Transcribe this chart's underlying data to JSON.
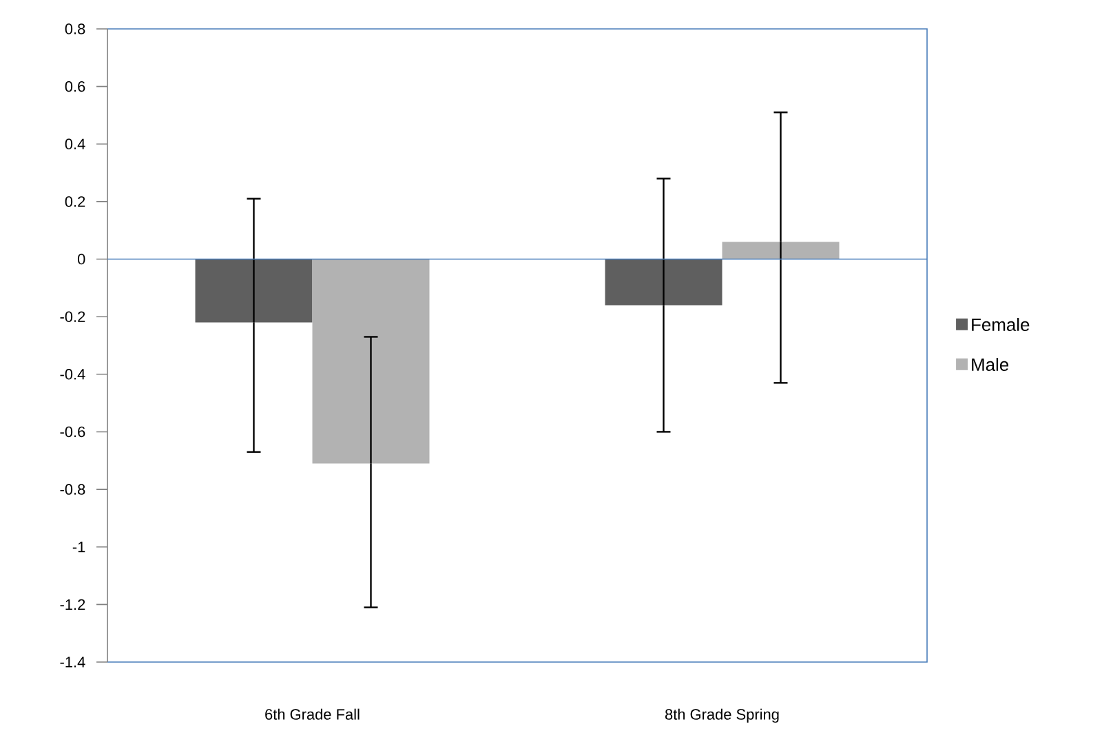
{
  "chart_data": {
    "type": "bar",
    "categories": [
      "6th Grade Fall",
      "8th Grade Spring"
    ],
    "series": [
      {
        "name": "Female",
        "color": "#5f5f5f",
        "values": [
          -0.22,
          -0.16
        ],
        "errors": [
          [
            -0.67,
            0.21
          ],
          [
            -0.6,
            0.28
          ]
        ]
      },
      {
        "name": "Male",
        "color": "#b2b2b2",
        "values": [
          -0.71,
          0.06
        ],
        "errors": [
          [
            -1.21,
            -0.27
          ],
          [
            -0.43,
            0.51
          ]
        ]
      }
    ],
    "ylim": [
      -1.4,
      0.8
    ],
    "yticks": [
      -1.4,
      -1.2,
      -1,
      -0.8,
      -0.6,
      -0.4,
      -0.2,
      0,
      0.2,
      0.4,
      0.6,
      0.8
    ],
    "legend": "right",
    "ref_lines": [
      {
        "axis": "y",
        "value": 0,
        "color": "#4a7ebb"
      }
    ]
  }
}
